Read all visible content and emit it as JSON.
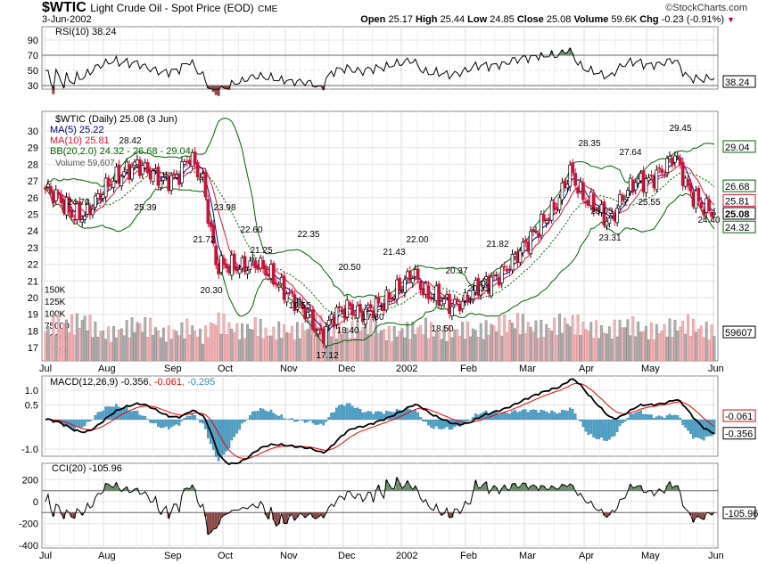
{
  "header": {
    "symbol": "$WTIC",
    "name": "Light Crude Oil - Spot Price (EOD)",
    "exchange": "CME",
    "date": "3-Jun-2002",
    "brand": "©StockCharts.com",
    "open_label": "Open",
    "open": "25.17",
    "high_label": "High",
    "high": "25.44",
    "low_label": "Low",
    "low": "24.85",
    "close_label": "Close",
    "close": "25.08",
    "volume_label": "Volume",
    "volume": "59.6K",
    "chg_label": "Chg",
    "chg": "-0.23 (-0.91%)",
    "down_color": "#c0002a"
  },
  "colors": {
    "ma5": "#00008b",
    "ma10": "#e0103a",
    "bb": "#006400",
    "up": "#000000",
    "down": "#d0103a",
    "vol_up": "#b0b0b0",
    "vol_down": "#f0b8bf",
    "macd_hist": "#4ba3cc",
    "osc_fill": "#6b8e6b",
    "cci_neg_fill": "#8b4a4a"
  },
  "chart_data": {
    "type": "candlestick",
    "title": "$WTIC Light Crude Oil - Spot Price (EOD)",
    "x_ticks": [
      "Jul",
      "Aug",
      "Sep",
      "Oct",
      "Nov",
      "Dec",
      "2002",
      "Feb",
      "Mar",
      "Apr",
      "May",
      "Jun"
    ],
    "price_ticks": [
      "30",
      "29",
      "28",
      "27",
      "26",
      "25",
      "24",
      "23",
      "22",
      "21",
      "20",
      "19",
      "18",
      "17"
    ],
    "price_range": [
      16.5,
      30.8
    ],
    "weekly_close": [
      26.5,
      26.0,
      25.0,
      24.9,
      26.0,
      27.0,
      27.5,
      28.0,
      27.5,
      27.0,
      27.2,
      28.5,
      27.0,
      22.0,
      21.9,
      21.8,
      22.1,
      21.5,
      20.6,
      19.8,
      19.0,
      17.6,
      19.0,
      19.4,
      19.0,
      19.4,
      19.8,
      20.6,
      21.5,
      20.2,
      20.0,
      19.5,
      19.8,
      20.7,
      21.0,
      21.6,
      22.6,
      23.6,
      24.6,
      25.6,
      27.6,
      26.0,
      25.4,
      24.5,
      26.0,
      27.0,
      27.0,
      27.6,
      28.6,
      26.5,
      25.5,
      25.08
    ],
    "weekly_volume": [
      60000,
      80000,
      75000,
      85000,
      60000,
      55000,
      65000,
      75000,
      70000,
      55000,
      60000,
      70000,
      50000,
      85000,
      70000,
      60000,
      75000,
      55000,
      65000,
      60000,
      70000,
      80000,
      65000,
      60000,
      70000,
      75000,
      55000,
      60000,
      65000,
      70000,
      55000,
      60000,
      65000,
      60000,
      70000,
      75000,
      80000,
      70000,
      65000,
      75000,
      80000,
      70000,
      65000,
      60000,
      75000,
      70000,
      60000,
      65000,
      70000,
      75000,
      65000,
      59607
    ],
    "volume_ticks": [
      "150K",
      "125K",
      "100K",
      "75000",
      "50000",
      "25000"
    ],
    "annotations": [
      {
        "week": 8,
        "value": "28.42"
      },
      {
        "week": 3,
        "value": "24.70"
      },
      {
        "week": 10,
        "value": "25.39"
      },
      {
        "week": 14,
        "value": "23.98"
      },
      {
        "week": 14.6,
        "value": "21.72"
      },
      {
        "week": 13.4,
        "value": "20.30"
      },
      {
        "week": 17,
        "value": "21.25"
      },
      {
        "week": 17.6,
        "value": "22.60"
      },
      {
        "week": 21,
        "value": "22.35"
      },
      {
        "week": 20.4,
        "value": "19.55"
      },
      {
        "week": 24.4,
        "value": "20.50"
      },
      {
        "week": 23.4,
        "value": "18.40"
      },
      {
        "week": 21.6,
        "value": "17.12"
      },
      {
        "week": 25.6,
        "value": "17.80"
      },
      {
        "week": 27.4,
        "value": "21.43"
      },
      {
        "week": 28.6,
        "value": "22.00"
      },
      {
        "week": 30.6,
        "value": "18.50"
      },
      {
        "week": 31.4,
        "value": "20.37"
      },
      {
        "week": 35.2,
        "value": "21.82"
      },
      {
        "week": 34.6,
        "value": "20.35"
      },
      {
        "week": 40.8,
        "value": "28.35"
      },
      {
        "week": 42.6,
        "value": "25.05"
      },
      {
        "week": 41.8,
        "value": "23.31"
      },
      {
        "week": 44.8,
        "value": "27.64"
      },
      {
        "week": 48.8,
        "value": "29.45"
      },
      {
        "week": 47.2,
        "value": "25.55"
      },
      {
        "week": 50.6,
        "value": "24.40"
      }
    ],
    "legend": {
      "main": "$WTIC (Daily) 25.08 (3 Jun)",
      "ma5": "MA(5) 25.22",
      "ma10": "MA(10) 25.81",
      "bb": "BB(20,2.0) 24.32 - 26.68 - 29.04",
      "volume": "Volume 59,607"
    },
    "tags": {
      "bb_upper": "29.04",
      "bb_mid": "26.68",
      "ma10": "25.81",
      "close": "25.08",
      "bb_lower": "24.32",
      "volume": "59607"
    },
    "rsi": {
      "label": "RSI(10) 38.24",
      "tag": "38.24",
      "ticks": [
        "90",
        "70",
        "50",
        "30"
      ],
      "range": [
        0,
        100
      ]
    },
    "macd": {
      "label_main": "MACD(12,26,9) -0.356",
      "label_signal": ", -0.061",
      "label_hist": ", -0.295",
      "tag_signal": "-0.061",
      "tag_macd": "-0.356",
      "ticks": [
        "1.0",
        "0.5",
        "-1.0"
      ]
    },
    "cci": {
      "label": "CCI(20) -105.96",
      "tag": "-105.96",
      "ticks": [
        "200",
        "0",
        "-200",
        "-400"
      ]
    }
  }
}
